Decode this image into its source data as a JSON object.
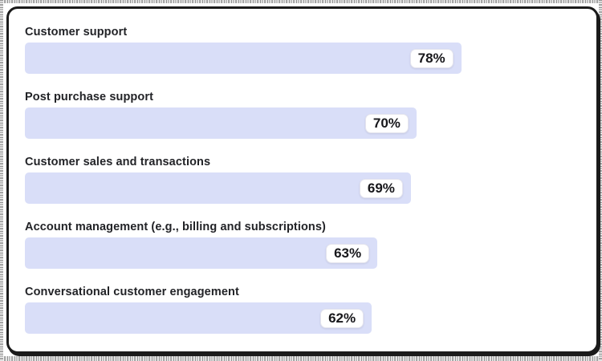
{
  "frame": {
    "card_background": "#ffffff",
    "card_border_color": "#1b1b1b",
    "page_background": "#ffffff"
  },
  "chart_data": {
    "type": "bar",
    "orientation": "horizontal",
    "title": "",
    "categories": [
      "Customer support",
      "Post purchase support",
      "Customer sales and transactions",
      "Account management (e.g., billing and subscriptions)",
      "Conversational customer engagement"
    ],
    "values": [
      78,
      70,
      69,
      63,
      62
    ],
    "value_labels": [
      "78%",
      "70%",
      "69%",
      "63%",
      "62%"
    ],
    "xlim": [
      0,
      100
    ],
    "grid": "off",
    "legend": "none",
    "bar_color": "#d9def8",
    "value_label_position": "inside-right badge"
  }
}
